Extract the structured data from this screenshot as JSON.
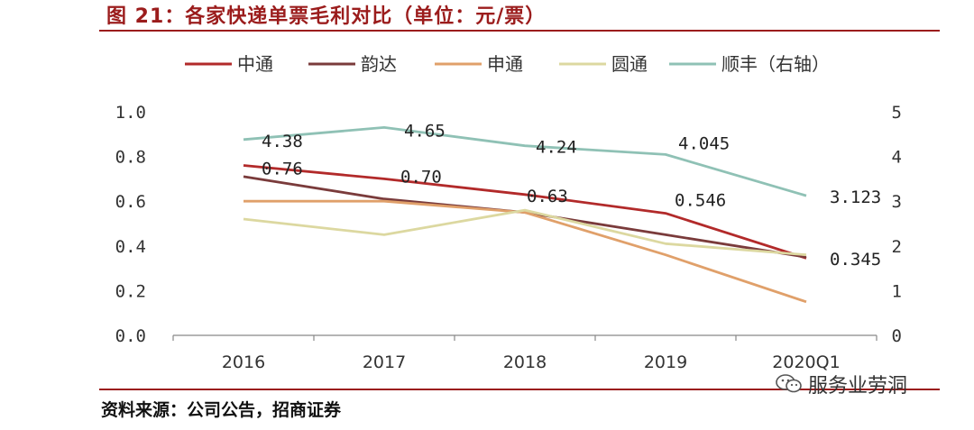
{
  "header": {
    "title": "图 21：各家快递单票毛利对比（单位：元/票）"
  },
  "footer": {
    "source": "资料来源：公司公告，招商证券",
    "watermark": "服务业劳洞"
  },
  "chart_data": {
    "type": "line",
    "title": "图 21：各家快递单票毛利对比（单位：元/票）",
    "categories": [
      "2016",
      "2017",
      "2018",
      "2019",
      "2020Q1"
    ],
    "y_left": {
      "min": 0,
      "max": 1,
      "ticks": [
        "0.0",
        "0.2",
        "0.4",
        "0.6",
        "0.8",
        "1.0"
      ]
    },
    "y_right": {
      "min": 0,
      "max": 5,
      "ticks": [
        "0",
        "1",
        "2",
        "3",
        "4",
        "5"
      ]
    },
    "legend_position": "top",
    "series": [
      {
        "name": "中通",
        "axis": "left",
        "color": "#b22a2a",
        "values": [
          0.76,
          0.7,
          0.63,
          0.546,
          0.345
        ]
      },
      {
        "name": "韵达",
        "axis": "left",
        "color": "#7a3b3b",
        "values": [
          0.71,
          0.61,
          0.55,
          0.45,
          0.35
        ]
      },
      {
        "name": "申通",
        "axis": "left",
        "color": "#e0a06a",
        "values": [
          0.6,
          0.6,
          0.55,
          0.36,
          0.15
        ]
      },
      {
        "name": "圆通",
        "axis": "left",
        "color": "#dcd8a0",
        "values": [
          0.52,
          0.45,
          0.56,
          0.41,
          0.36
        ]
      },
      {
        "name": "顺丰（右轴）",
        "axis": "right",
        "color": "#8fc1b5",
        "values": [
          4.38,
          4.65,
          4.24,
          4.045,
          3.123
        ]
      }
    ],
    "data_labels": [
      {
        "series": 4,
        "index": 0,
        "text": "4.38"
      },
      {
        "series": 4,
        "index": 1,
        "text": "4.65"
      },
      {
        "series": 4,
        "index": 2,
        "text": "4.24"
      },
      {
        "series": 4,
        "index": 3,
        "text": "4.045"
      },
      {
        "series": 4,
        "index": 4,
        "text": "3.123"
      },
      {
        "series": 0,
        "index": 0,
        "text": "0.76"
      },
      {
        "series": 0,
        "index": 1,
        "text": "0.70"
      },
      {
        "series": 0,
        "index": 2,
        "text": "0.63"
      },
      {
        "series": 0,
        "index": 3,
        "text": "0.546"
      },
      {
        "series": 0,
        "index": 4,
        "text": "0.345"
      }
    ]
  }
}
